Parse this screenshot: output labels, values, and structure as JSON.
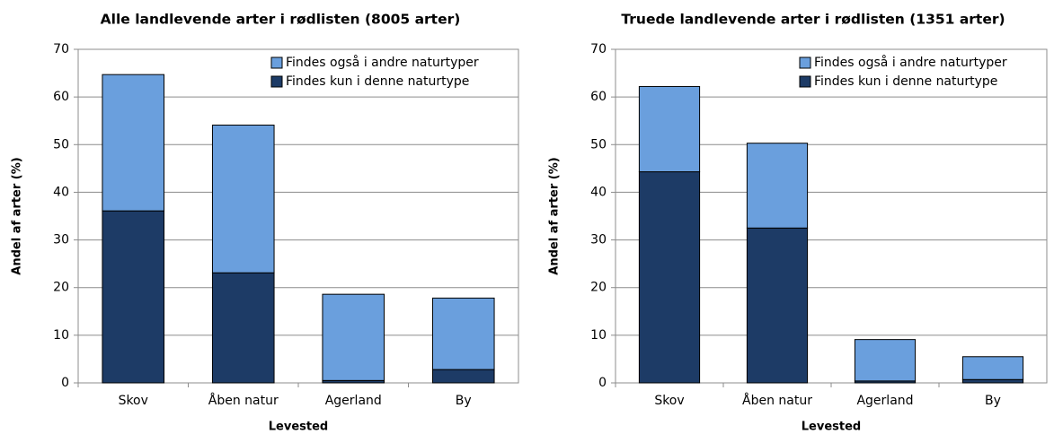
{
  "chart_data": [
    {
      "type": "stacked_bar",
      "title": "Alle landlevende arter i rødlisten (8005 arter)",
      "xlabel": "Levested",
      "ylabel": "Andel af arter (%)",
      "categories": [
        "Skov",
        "Åben natur",
        "Agerland",
        "By"
      ],
      "series": [
        {
          "name": "Findes også i andre naturtyper",
          "color": "#6a9fdd",
          "values": [
            28.6,
            31.0,
            18.1,
            15.0
          ]
        },
        {
          "name": "Findes kun i denne naturtype",
          "color": "#1d3b66",
          "values": [
            36.1,
            23.1,
            0.5,
            2.8
          ]
        }
      ],
      "ylim": [
        0,
        70
      ],
      "yticks": [
        0,
        10,
        20,
        30,
        40,
        50,
        60,
        70
      ],
      "grid": true,
      "legend": "upper right"
    },
    {
      "type": "stacked_bar",
      "title": "Truede landlevende arter i rødlisten (1351 arter)",
      "xlabel": "Levested",
      "ylabel": "Andel af arter (%)",
      "categories": [
        "Skov",
        "Åben natur",
        "Agerland",
        "By"
      ],
      "series": [
        {
          "name": "Findes også i andre naturtyper",
          "color": "#6a9fdd",
          "values": [
            17.9,
            17.8,
            8.7,
            4.8
          ]
        },
        {
          "name": "Findes kun i denne naturtype",
          "color": "#1d3b66",
          "values": [
            44.3,
            32.5,
            0.4,
            0.7
          ]
        }
      ],
      "ylim": [
        0,
        70
      ],
      "yticks": [
        0,
        10,
        20,
        30,
        40,
        50,
        60,
        70
      ],
      "grid": true,
      "legend": "upper right"
    }
  ]
}
